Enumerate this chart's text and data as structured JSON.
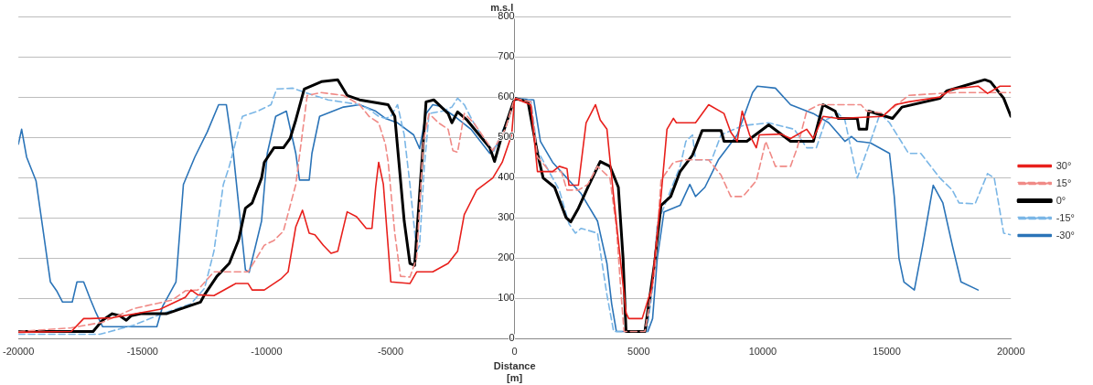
{
  "chart_data": {
    "type": "line",
    "xlabel": "Distance\n[m]",
    "ylabel": "m.s.l",
    "xlim": [
      -20000,
      20000
    ],
    "xticks": [
      -20000,
      -15000,
      -10000,
      -5000,
      0,
      5000,
      10000,
      15000,
      20000
    ],
    "ylim": [
      0,
      800
    ],
    "yticks": [
      0,
      100,
      200,
      300,
      400,
      500,
      600,
      700,
      800
    ],
    "grid": "y",
    "legend": "right",
    "marker": "none",
    "series": [
      {
        "name": "30°",
        "color": "#e8201c",
        "line_style": "solid",
        "x": [
          -20000,
          -17870,
          -17370,
          -17120,
          -16220,
          -14300,
          -13270,
          -13040,
          -12770,
          -12120,
          -11240,
          -10740,
          -10580,
          -10090,
          -9430,
          -9130,
          -8820,
          -8550,
          -8280,
          -8050,
          -7710,
          -7400,
          -7130,
          -6750,
          -6370,
          -5980,
          -5750,
          -5600,
          -5480,
          -5290,
          -4990,
          -4220,
          -3950,
          -3300,
          -2680,
          -2300,
          -2030,
          -1530,
          -880,
          -500,
          -120,
          0,
          650,
          920,
          1530,
          1800,
          2110,
          2190,
          2570,
          2880,
          3260,
          3450,
          3720,
          3990,
          4490,
          4600,
          5140,
          5520,
          5900,
          6140,
          6400,
          6520,
          7290,
          7820,
          8440,
          8710,
          8970,
          9170,
          9470,
          9740,
          9860,
          10740,
          11120,
          11770,
          12040,
          12430,
          13040,
          14840,
          15340,
          15880,
          17140,
          17640,
          18680,
          19060,
          19560,
          20000
        ],
        "values": [
          16,
          18,
          50,
          50,
          52,
          73,
          103,
          121,
          109,
          107,
          137,
          137,
          121,
          121,
          148,
          166,
          278,
          319,
          262,
          258,
          232,
          212,
          217,
          315,
          303,
          274,
          274,
          376,
          438,
          383,
          141,
          137,
          166,
          166,
          187,
          217,
          308,
          369,
          399,
          438,
          506,
          597,
          581,
          415,
          415,
          428,
          422,
          381,
          381,
          536,
          581,
          543,
          520,
          353,
          64,
          50,
          50,
          125,
          353,
          520,
          547,
          536,
          536,
          581,
          559,
          513,
          490,
          565,
          506,
          474,
          506,
          508,
          497,
          520,
          497,
          552,
          547,
          552,
          581,
          588,
          600,
          620,
          627,
          609,
          627,
          627
        ]
      },
      {
        "name": "15°",
        "color": "#f08a86",
        "line_style": "dashed",
        "x": [
          -20000,
          -17870,
          -16610,
          -15340,
          -13800,
          -13270,
          -12770,
          -12120,
          -10740,
          -10090,
          -9700,
          -9320,
          -8820,
          -8360,
          -7790,
          -6900,
          -6250,
          -5870,
          -5480,
          -5210,
          -5100,
          -4830,
          -4600,
          -4220,
          -3950,
          -3680,
          -3450,
          -3070,
          -2680,
          -2490,
          -2300,
          -2030,
          -1650,
          -880,
          -380,
          0,
          650,
          920,
          1420,
          1880,
          2110,
          2570,
          2950,
          3340,
          3840,
          4100,
          4300,
          4410,
          5250,
          5640,
          5900,
          6400,
          6900,
          7820,
          8320,
          8710,
          9200,
          9740,
          10120,
          10510,
          11120,
          11390,
          11770,
          12270,
          13960,
          14190,
          14960,
          15880,
          17140,
          17790,
          20000
        ],
        "values": [
          18,
          27,
          41,
          75,
          96,
          119,
          121,
          166,
          166,
          232,
          244,
          267,
          383,
          604,
          611,
          604,
          581,
          552,
          536,
          483,
          440,
          262,
          155,
          153,
          200,
          490,
          559,
          536,
          520,
          467,
          463,
          559,
          536,
          467,
          520,
          597,
          588,
          451,
          415,
          415,
          369,
          369,
          383,
          428,
          399,
          278,
          103,
          18,
          18,
          164,
          394,
          438,
          444,
          444,
          406,
          353,
          353,
          392,
          490,
          428,
          428,
          474,
          565,
          581,
          581,
          565,
          559,
          604,
          609,
          611,
          611
        ]
      },
      {
        "name": "0°",
        "color": "#000000",
        "line_style": "solid",
        "x": [
          -20000,
          -16990,
          -16610,
          -16220,
          -15920,
          -15650,
          -15460,
          -15070,
          -14040,
          -13420,
          -12660,
          -12500,
          -12000,
          -11500,
          -11120,
          -10850,
          -10580,
          -10200,
          -10090,
          -9700,
          -9320,
          -9050,
          -8820,
          -8480,
          -7790,
          -7130,
          -6750,
          -6250,
          -5100,
          -4830,
          -4450,
          -4220,
          -4030,
          -3570,
          -3260,
          -2680,
          -2530,
          -2300,
          -1920,
          -1000,
          -810,
          -580,
          0,
          540,
          920,
          1150,
          1610,
          2070,
          2260,
          2570,
          2950,
          3450,
          3840,
          4180,
          4370,
          4490,
          5250,
          5640,
          5900,
          6290,
          6670,
          7170,
          7560,
          8320,
          8440,
          9360,
          10240,
          11120,
          12040,
          12430,
          12920,
          13040,
          13810,
          13880,
          14190,
          14270,
          15230,
          15610,
          17140,
          17410,
          18950,
          19180,
          19710,
          20000
        ],
        "values": [
          18,
          18,
          46,
          62,
          57,
          46,
          57,
          62,
          62,
          75,
          91,
          109,
          155,
          187,
          246,
          324,
          337,
          399,
          438,
          474,
          474,
          497,
          543,
          620,
          638,
          643,
          604,
          593,
          581,
          552,
          292,
          187,
          182,
          588,
          593,
          559,
          536,
          563,
          543,
          474,
          440,
          490,
          597,
          588,
          460,
          399,
          376,
          301,
          290,
          324,
          376,
          440,
          428,
          376,
          200,
          18,
          18,
          187,
          331,
          353,
          415,
          456,
          517,
          517,
          490,
          490,
          531,
          490,
          490,
          581,
          565,
          547,
          547,
          520,
          520,
          565,
          547,
          575,
          597,
          615,
          643,
          638,
          597,
          552
        ]
      },
      {
        "name": "-15°",
        "color": "#7ab6e6",
        "line_style": "dashed",
        "x": [
          -20000,
          -16720,
          -15340,
          -14420,
          -13040,
          -12500,
          -12120,
          -11740,
          -11500,
          -11240,
          -10970,
          -10350,
          -9820,
          -9590,
          -8940,
          -8440,
          -7520,
          -6250,
          -5870,
          -5480,
          -5210,
          -4990,
          -4720,
          -4450,
          -4220,
          -3950,
          -3830,
          -3640,
          -3450,
          -2910,
          -2530,
          -2300,
          -2030,
          -1650,
          -880,
          -190,
          0,
          650,
          920,
          1800,
          2190,
          2450,
          2680,
          3340,
          3720,
          3990,
          5330,
          5560,
          5750,
          6670,
          6900,
          7170,
          7290,
          7940,
          8320,
          9200,
          10240,
          11270,
          11770,
          12160,
          12540,
          13040,
          13310,
          13810,
          14340,
          14730,
          15110,
          15880,
          16370,
          17140,
          17640,
          17910,
          18560,
          19060,
          19330,
          19710,
          20000
        ],
        "values": [
          11,
          11,
          34,
          57,
          87,
          125,
          217,
          383,
          428,
          490,
          552,
          565,
          581,
          620,
          622,
          611,
          593,
          581,
          570,
          552,
          547,
          552,
          581,
          506,
          383,
          217,
          232,
          428,
          559,
          565,
          575,
          597,
          581,
          536,
          460,
          559,
          597,
          593,
          467,
          369,
          285,
          262,
          274,
          262,
          109,
          18,
          18,
          125,
          285,
          428,
          490,
          506,
          444,
          444,
          506,
          529,
          536,
          520,
          474,
          474,
          543,
          559,
          543,
          399,
          490,
          559,
          536,
          460,
          460,
          399,
          369,
          337,
          335,
          410,
          399,
          262,
          258
        ]
      },
      {
        "name": "-30°",
        "color": "#2b74b8",
        "line_style": "solid",
        "x": [
          -20000,
          -19870,
          -19670,
          -19290,
          -19060,
          -18710,
          -18460,
          -18220,
          -17830,
          -17640,
          -17370,
          -17100,
          -16870,
          -16610,
          -14420,
          -14190,
          -13650,
          -13350,
          -12890,
          -12390,
          -11930,
          -11620,
          -11350,
          -10850,
          -10700,
          -10200,
          -9970,
          -9630,
          -9200,
          -8820,
          -8670,
          -8280,
          -8170,
          -7860,
          -6900,
          -6250,
          -5600,
          -5210,
          -4720,
          -4070,
          -3830,
          -3570,
          -3300,
          -2990,
          -2420,
          -1760,
          -1000,
          -690,
          -380,
          0,
          770,
          1040,
          1530,
          2680,
          3340,
          3720,
          3910,
          4100,
          5370,
          5560,
          5750,
          6020,
          6670,
          7060,
          7290,
          7670,
          8210,
          8970,
          9590,
          9780,
          10510,
          11120,
          12040,
          12660,
          13310,
          13580,
          13810,
          14340,
          15110,
          15300,
          15490,
          15690,
          16110,
          16450,
          16870,
          17260,
          17640,
          17990,
          18680
        ],
        "values": [
          483,
          520,
          451,
          392,
          293,
          141,
          119,
          91,
          91,
          141,
          141,
          98,
          64,
          30,
          30,
          80,
          141,
          383,
          451,
          513,
          581,
          581,
          467,
          171,
          165,
          292,
          460,
          552,
          565,
          460,
          394,
          394,
          460,
          552,
          575,
          581,
          565,
          547,
          536,
          506,
          472,
          559,
          581,
          577,
          552,
          520,
          460,
          483,
          529,
          597,
          593,
          490,
          438,
          360,
          292,
          187,
          87,
          18,
          18,
          50,
          200,
          315,
          331,
          383,
          353,
          376,
          444,
          506,
          611,
          627,
          622,
          581,
          559,
          536,
          490,
          502,
          490,
          486,
          460,
          353,
          200,
          141,
          121,
          232,
          381,
          337,
          232,
          141,
          121
        ]
      }
    ]
  }
}
